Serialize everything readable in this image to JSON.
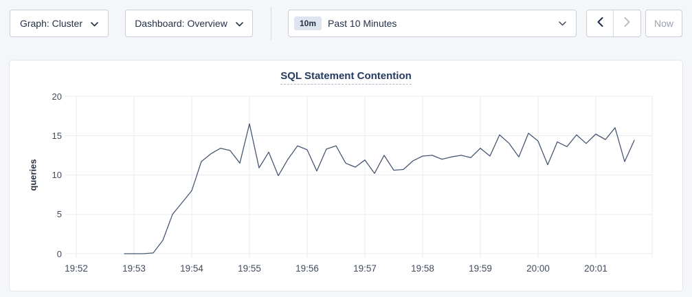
{
  "toolbar": {
    "graph_dropdown": {
      "label": "Graph: Cluster"
    },
    "dashboard_dropdown": {
      "label": "Dashboard: Overview"
    },
    "time_selector": {
      "badge": "10m",
      "label": "Past 10 Minutes"
    },
    "now_button": {
      "label": "Now"
    },
    "icons": {
      "graph_dropdown": "chevron-down",
      "dashboard_dropdown": "chevron-down",
      "time_selector": "chevron-down",
      "prev": "chevron-left",
      "next": "chevron-right"
    }
  },
  "colors": {
    "page_bg": "#f4f6fa",
    "card_bg": "#ffffff",
    "line": "#475672",
    "grid": "#e9ebee",
    "axis_text": "#3f4a5c",
    "title_text": "#253a60",
    "button_text": "#253146",
    "disabled_text": "#99a1ae",
    "badge_bg": "#dfe5ef"
  },
  "chart_data": {
    "type": "line",
    "title": "SQL Statement Contention",
    "xlabel": "",
    "ylabel": "queries",
    "ylim": [
      0,
      20
    ],
    "y_ticks": [
      0,
      5,
      10,
      15,
      20
    ],
    "x_ticks": [
      "19:52",
      "19:53",
      "19:54",
      "19:55",
      "19:56",
      "19:57",
      "19:58",
      "19:59",
      "20:00",
      "20:01"
    ],
    "x_tick_interval_seconds": 60,
    "grid": true,
    "legend": "none",
    "series": [
      {
        "name": "queries",
        "color": "#475672",
        "times": [
          "19:52:50",
          "19:53:00",
          "19:53:10",
          "19:53:20",
          "19:53:30",
          "19:53:40",
          "19:53:50",
          "19:54:00",
          "19:54:10",
          "19:54:20",
          "19:54:30",
          "19:54:40",
          "19:54:50",
          "19:55:00",
          "19:55:10",
          "19:55:20",
          "19:55:30",
          "19:55:40",
          "19:55:50",
          "19:56:00",
          "19:56:10",
          "19:56:20",
          "19:56:30",
          "19:56:40",
          "19:56:50",
          "19:57:00",
          "19:57:10",
          "19:57:20",
          "19:57:30",
          "19:57:40",
          "19:57:50",
          "19:58:00",
          "19:58:10",
          "19:58:20",
          "19:58:30",
          "19:58:40",
          "19:58:50",
          "19:59:00",
          "19:59:10",
          "19:59:20",
          "19:59:30",
          "19:59:40",
          "19:59:50",
          "20:00:00",
          "20:00:10",
          "20:00:20",
          "20:00:30",
          "20:00:40",
          "20:00:50",
          "20:01:00",
          "20:01:10",
          "20:01:20",
          "20:01:30",
          "20:01:40"
        ],
        "values": [
          0,
          0,
          0,
          0.1,
          1.7,
          5.0,
          6.5,
          8.0,
          11.7,
          12.7,
          13.4,
          13.1,
          11.5,
          16.5,
          10.9,
          12.9,
          9.9,
          12.0,
          13.7,
          13.2,
          10.5,
          13.3,
          13.7,
          11.5,
          11.0,
          11.9,
          10.2,
          12.5,
          10.6,
          10.7,
          11.8,
          12.4,
          12.5,
          12.0,
          12.3,
          12.5,
          12.2,
          13.4,
          12.4,
          15.1,
          14.0,
          12.3,
          15.3,
          14.3,
          11.3,
          14.2,
          13.6,
          15.1,
          14.0,
          15.2,
          14.5,
          16.0,
          11.7,
          14.4
        ]
      }
    ]
  }
}
